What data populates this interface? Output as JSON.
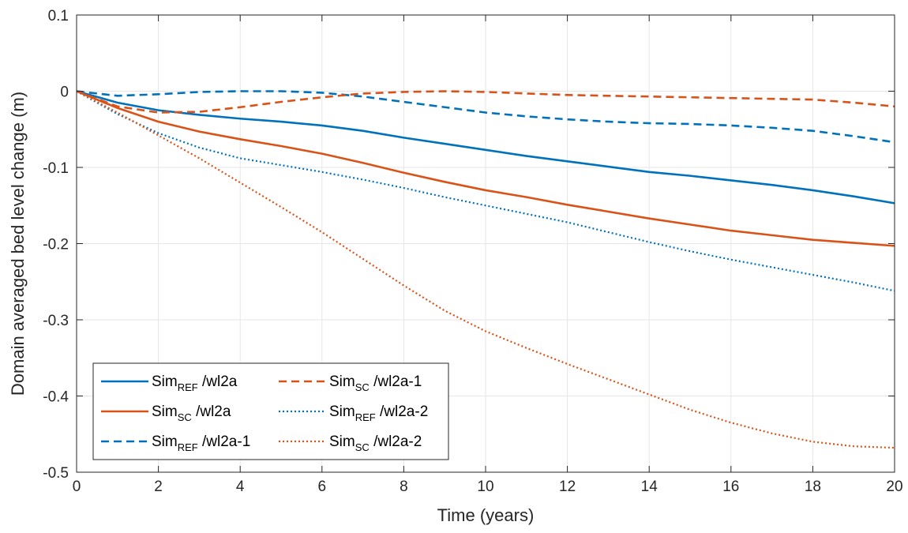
{
  "chart_data": {
    "type": "line",
    "xlabel": "Time (years)",
    "ylabel": "Domain averaged bed level change (m)",
    "xlim": [
      0,
      20
    ],
    "ylim": [
      -0.5,
      0.1
    ],
    "xticks": [
      0,
      2,
      4,
      6,
      8,
      10,
      12,
      14,
      16,
      18,
      20
    ],
    "yticks": [
      0.1,
      0,
      -0.1,
      -0.2,
      -0.3,
      -0.4,
      -0.5
    ],
    "xtick_labels": [
      "0",
      "2",
      "4",
      "6",
      "8",
      "10",
      "12",
      "14",
      "16",
      "18",
      "20"
    ],
    "ytick_labels": [
      "0.1",
      "0",
      "-0.1",
      "-0.2",
      "-0.3",
      "-0.4",
      "-0.5"
    ],
    "grid": true,
    "legend_position": "bottom-left",
    "series": [
      {
        "name_main": "Sim",
        "name_sub": "REF",
        "name_suffix": " /wl2a",
        "color": "#0072BD",
        "style": "solid",
        "x": [
          0,
          1,
          2,
          3,
          4,
          5,
          6,
          7,
          8,
          9,
          10,
          11,
          12,
          13,
          14,
          15,
          16,
          17,
          18,
          19,
          20
        ],
        "y": [
          0,
          -0.015,
          -0.025,
          -0.031,
          -0.036,
          -0.04,
          -0.045,
          -0.052,
          -0.061,
          -0.069,
          -0.077,
          -0.085,
          -0.092,
          -0.099,
          -0.106,
          -0.111,
          -0.117,
          -0.123,
          -0.13,
          -0.138,
          -0.147
        ]
      },
      {
        "name_main": "Sim",
        "name_sub": "SC",
        "name_suffix": " /wl2a",
        "color": "#D95319",
        "style": "solid",
        "x": [
          0,
          1,
          2,
          3,
          4,
          5,
          6,
          7,
          8,
          9,
          10,
          11,
          12,
          13,
          14,
          15,
          16,
          17,
          18,
          19,
          20
        ],
        "y": [
          0,
          -0.022,
          -0.04,
          -0.053,
          -0.063,
          -0.072,
          -0.082,
          -0.094,
          -0.107,
          -0.119,
          -0.13,
          -0.139,
          -0.149,
          -0.158,
          -0.167,
          -0.175,
          -0.183,
          -0.189,
          -0.195,
          -0.199,
          -0.203
        ]
      },
      {
        "name_main": "Sim",
        "name_sub": "REF",
        "name_suffix": " /wl2a-1",
        "color": "#0072BD",
        "style": "dashed",
        "x": [
          0,
          1,
          2,
          3,
          4,
          5,
          6,
          7,
          8,
          9,
          10,
          11,
          12,
          13,
          14,
          15,
          16,
          17,
          18,
          19,
          20
        ],
        "y": [
          0,
          -0.006,
          -0.004,
          -0.001,
          0,
          0,
          -0.002,
          -0.007,
          -0.014,
          -0.021,
          -0.028,
          -0.033,
          -0.037,
          -0.04,
          -0.042,
          -0.043,
          -0.045,
          -0.048,
          -0.052,
          -0.059,
          -0.067
        ]
      },
      {
        "name_main": "Sim",
        "name_sub": "SC",
        "name_suffix": " /wl2a-1",
        "color": "#D95319",
        "style": "dashed",
        "x": [
          0,
          1,
          2,
          3,
          4,
          5,
          6,
          7,
          8,
          9,
          10,
          11,
          12,
          13,
          14,
          15,
          16,
          17,
          18,
          19,
          20
        ],
        "y": [
          0,
          -0.02,
          -0.028,
          -0.027,
          -0.021,
          -0.014,
          -0.008,
          -0.003,
          -0.001,
          0,
          -0.001,
          -0.003,
          -0.005,
          -0.006,
          -0.007,
          -0.008,
          -0.009,
          -0.01,
          -0.011,
          -0.015,
          -0.02
        ]
      },
      {
        "name_main": "Sim",
        "name_sub": "REF",
        "name_suffix": " /wl2a-2",
        "color": "#0072BD",
        "style": "dotted",
        "x": [
          0,
          1,
          2,
          3,
          4,
          5,
          6,
          7,
          8,
          9,
          10,
          11,
          12,
          13,
          14,
          15,
          16,
          17,
          18,
          19,
          20
        ],
        "y": [
          0,
          -0.03,
          -0.055,
          -0.074,
          -0.088,
          -0.097,
          -0.106,
          -0.116,
          -0.127,
          -0.139,
          -0.15,
          -0.161,
          -0.172,
          -0.185,
          -0.198,
          -0.21,
          -0.221,
          -0.231,
          -0.241,
          -0.251,
          -0.262
        ]
      },
      {
        "name_main": "Sim",
        "name_sub": "SC",
        "name_suffix": " /wl2a-2",
        "color": "#D95319",
        "style": "dotted",
        "x": [
          0,
          1,
          2,
          3,
          4,
          5,
          6,
          7,
          8,
          9,
          10,
          11,
          12,
          13,
          14,
          15,
          16,
          17,
          18,
          19,
          20
        ],
        "y": [
          0,
          -0.028,
          -0.058,
          -0.088,
          -0.12,
          -0.152,
          -0.185,
          -0.22,
          -0.255,
          -0.288,
          -0.315,
          -0.337,
          -0.358,
          -0.378,
          -0.398,
          -0.418,
          -0.435,
          -0.449,
          -0.46,
          -0.466,
          -0.468
        ]
      }
    ]
  }
}
